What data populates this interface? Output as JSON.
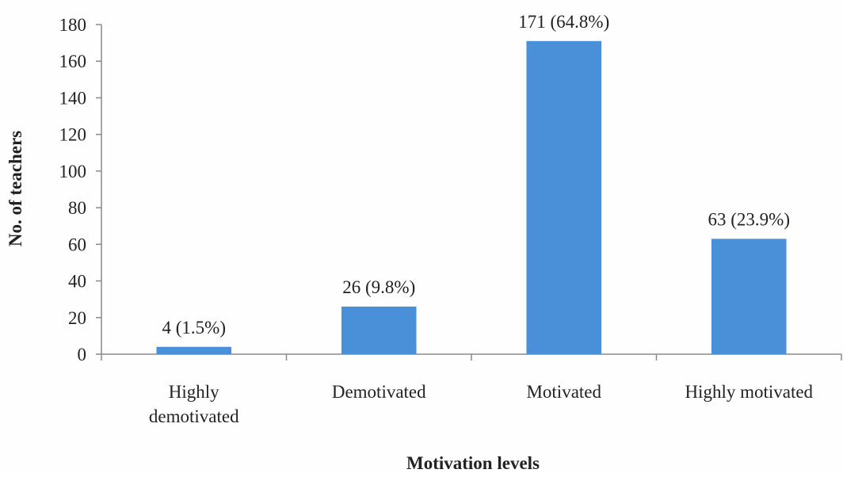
{
  "chart_data": {
    "type": "bar",
    "categories": [
      "Highly demotivated",
      "Demotivated",
      "Motivated",
      "Highly motivated"
    ],
    "category_lines": [
      [
        "Highly",
        "demotivated"
      ],
      [
        "Demotivated"
      ],
      [
        "Motivated"
      ],
      [
        "Highly motivated"
      ]
    ],
    "values": [
      4,
      26,
      171,
      63
    ],
    "data_labels": [
      "4 (1.5%)",
      "26 (9.8%)",
      "171 (64.8%)",
      "63 (23.9%)"
    ],
    "title": "",
    "xlabel": "Motivation levels",
    "ylabel": "No. of teachers",
    "ylim": [
      0,
      180
    ],
    "yticks": [
      "0",
      "20",
      "40",
      "60",
      "80",
      "100",
      "120",
      "140",
      "160",
      "180"
    ],
    "grid": false,
    "bar_color": "#4a90d9"
  }
}
